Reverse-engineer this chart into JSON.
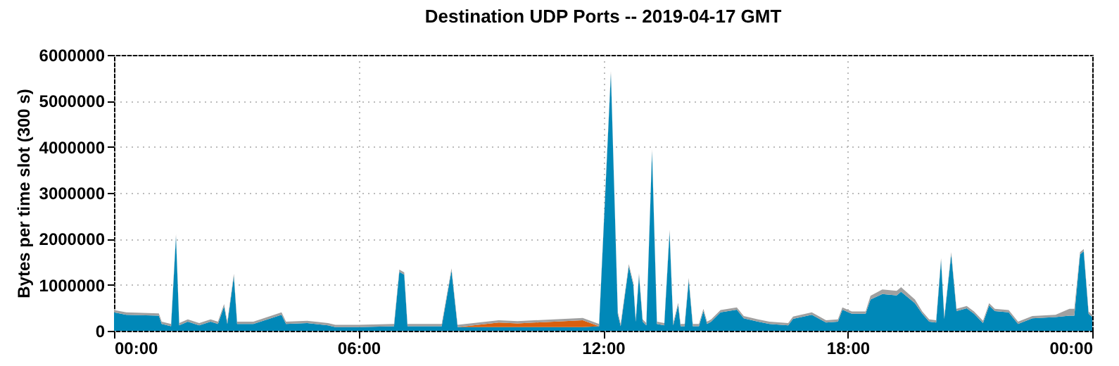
{
  "chart_data": {
    "type": "area",
    "title": "Destination UDP Ports -- 2019-04-17 GMT",
    "ylabel": "Bytes per time slot (300 s)",
    "x": [
      0,
      0.3,
      1.1,
      1.17,
      1.4,
      1.52,
      1.6,
      1.81,
      2.09,
      2.37,
      2.55,
      2.7,
      2.78,
      2.94,
      3.02,
      3.42,
      4.11,
      4.22,
      4.74,
      5.25,
      5.43,
      6.0,
      6.87,
      7.0,
      7.12,
      7.2,
      8.04,
      8.28,
      8.43,
      9.44,
      9.9,
      10.8,
      11.5,
      11.9,
      12.19,
      12.36,
      12.43,
      12.63,
      12.74,
      12.8,
      12.88,
      12.97,
      13.06,
      13.2,
      13.32,
      13.5,
      13.63,
      13.72,
      13.84,
      13.9,
      14.0,
      14.1,
      14.2,
      14.35,
      14.46,
      14.55,
      14.65,
      14.88,
      15.28,
      15.45,
      15.8,
      16.08,
      16.54,
      16.66,
      17.12,
      17.47,
      17.76,
      17.87,
      18.1,
      18.44,
      18.56,
      18.85,
      19.2,
      19.31,
      19.65,
      19.83,
      20.0,
      20.17,
      20.29,
      20.37,
      20.54,
      20.67,
      20.92,
      21.1,
      21.32,
      21.47,
      21.61,
      21.95,
      22.18,
      22.53,
      23.1,
      23.44,
      23.56,
      23.7,
      23.79,
      23.91,
      24
    ],
    "series": [
      {
        "color": "#0088b8",
        "values": [
          400000,
          350000,
          330000,
          150000,
          100000,
          2050000,
          120000,
          200000,
          120000,
          200000,
          150000,
          530000,
          150000,
          1190000,
          150000,
          150000,
          350000,
          150000,
          170000,
          120000,
          80000,
          80000,
          100000,
          1280000,
          1220000,
          100000,
          100000,
          1310000,
          80000,
          80000,
          80000,
          80000,
          80000,
          100000,
          5600000,
          360000,
          100000,
          1400000,
          1000000,
          200000,
          1200000,
          200000,
          120000,
          3900000,
          150000,
          120000,
          2150000,
          120000,
          560000,
          100000,
          100000,
          1100000,
          100000,
          100000,
          430000,
          150000,
          200000,
          400000,
          460000,
          270000,
          200000,
          150000,
          120000,
          260000,
          350000,
          180000,
          200000,
          460000,
          370000,
          370000,
          680000,
          800000,
          770000,
          850000,
          600000,
          370000,
          200000,
          180000,
          1530000,
          260000,
          1660000,
          430000,
          490000,
          370000,
          170000,
          550000,
          430000,
          400000,
          150000,
          270000,
          300000,
          330000,
          330000,
          1660000,
          1730000,
          370000,
          300000
        ]
      },
      {
        "color": "#d95f0e",
        "values": [
          0,
          0,
          0,
          0,
          0,
          0,
          0,
          0,
          0,
          0,
          0,
          0,
          0,
          0,
          0,
          0,
          0,
          0,
          0,
          0,
          0,
          0,
          0,
          0,
          0,
          0,
          0,
          0,
          0,
          100000,
          80000,
          120000,
          150000,
          0,
          0,
          0,
          0,
          0,
          0,
          0,
          0,
          0,
          0,
          0,
          0,
          0,
          0,
          0,
          0,
          0,
          0,
          0,
          0,
          0,
          0,
          0,
          0,
          0,
          0,
          0,
          0,
          0,
          0,
          0,
          0,
          0,
          0,
          0,
          0,
          0,
          0,
          0,
          0,
          0,
          0,
          0,
          0,
          0,
          0,
          0,
          0,
          0,
          0,
          0,
          0,
          0,
          0,
          0,
          0,
          0,
          0,
          0,
          0,
          0,
          0,
          0,
          0
        ]
      },
      {
        "color": "#a0a0a0",
        "values": [
          50000,
          50000,
          50000,
          50000,
          50000,
          50000,
          50000,
          50000,
          50000,
          50000,
          50000,
          50000,
          50000,
          50000,
          50000,
          50000,
          50000,
          50000,
          50000,
          50000,
          50000,
          50000,
          50000,
          50000,
          50000,
          50000,
          50000,
          50000,
          50000,
          50000,
          50000,
          50000,
          50000,
          50000,
          50000,
          50000,
          50000,
          50000,
          50000,
          50000,
          50000,
          50000,
          50000,
          50000,
          50000,
          50000,
          50000,
          50000,
          50000,
          50000,
          50000,
          50000,
          50000,
          50000,
          50000,
          50000,
          50000,
          50000,
          50000,
          50000,
          50000,
          50000,
          50000,
          50000,
          50000,
          50000,
          50000,
          50000,
          50000,
          50000,
          80000,
          100000,
          100000,
          100000,
          80000,
          50000,
          50000,
          50000,
          50000,
          50000,
          50000,
          50000,
          50000,
          50000,
          50000,
          50000,
          50000,
          50000,
          50000,
          50000,
          50000,
          150000,
          150000,
          50000,
          50000,
          50000,
          50000
        ]
      }
    ],
    "stacked": true,
    "xlim": [
      0,
      24
    ],
    "xticks": [
      {
        "value": 0,
        "label": "00:00"
      },
      {
        "value": 6,
        "label": "06:00"
      },
      {
        "value": 12,
        "label": "12:00"
      },
      {
        "value": 18,
        "label": "18:00"
      },
      {
        "value": 24,
        "label": "00:00"
      }
    ],
    "ylim": [
      0,
      6000000
    ],
    "yticks": [
      0,
      1000000,
      2000000,
      3000000,
      4000000,
      5000000,
      6000000
    ],
    "grid": true,
    "legend": false
  }
}
